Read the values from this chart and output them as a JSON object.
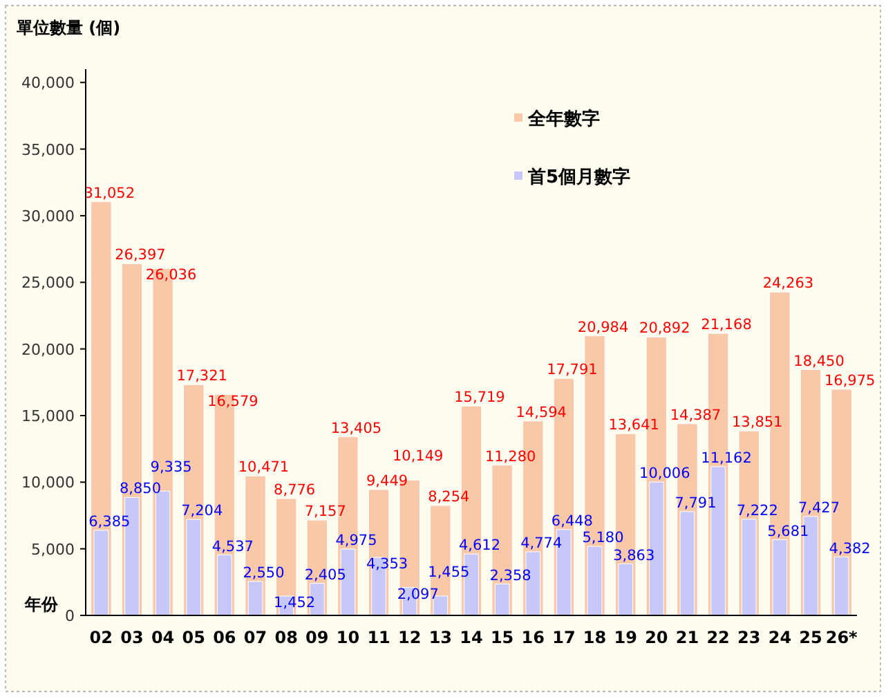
{
  "chart_data": {
    "type": "bar",
    "ylabel": "單位數量 (個)",
    "xlabel": "年份",
    "categories": [
      "02",
      "03",
      "04",
      "05",
      "06",
      "07",
      "08",
      "09",
      "10",
      "11",
      "12",
      "13",
      "14",
      "15",
      "16",
      "17",
      "18",
      "19",
      "20",
      "21",
      "22",
      "23",
      "24",
      "25",
      "26*"
    ],
    "series": [
      {
        "name": "全年數字",
        "color": "#f8c8a8",
        "values": [
          31052,
          26397,
          26036,
          17321,
          16579,
          10471,
          8776,
          7157,
          13405,
          9449,
          10149,
          8254,
          15719,
          11280,
          14594,
          17791,
          20984,
          13641,
          20892,
          14387,
          21168,
          13851,
          24263,
          18450,
          16975
        ],
        "value_labels": [
          "31,052",
          "26,397",
          "26,036",
          "17,321",
          "16,579",
          "10,471",
          "8,776",
          "7,157",
          "13,405",
          "9,449",
          "10,149",
          "8,254",
          "15,719",
          "11,280",
          "14,594",
          "17,791",
          "20,984",
          "13,641",
          "20,892",
          "14,387",
          "21,168",
          "13,851",
          "24,263",
          "18,450",
          "16,975"
        ]
      },
      {
        "name": "首5個月數字",
        "color": "#c8c8f8",
        "values": [
          6385,
          8850,
          9335,
          7204,
          4537,
          2550,
          1452,
          2405,
          4975,
          4353,
          2097,
          1455,
          4612,
          2358,
          4774,
          6448,
          5180,
          3863,
          10006,
          7791,
          11162,
          7222,
          5681,
          7427,
          4382
        ],
        "value_labels": [
          "6,385",
          "8,850",
          "9,335",
          "7,204",
          "4,537",
          "2,550",
          "1,452",
          "2,405",
          "4,975",
          "4,353",
          "2,097",
          "1,455",
          "4,612",
          "2,358",
          "4,774",
          "6,448",
          "5,180",
          "3,863",
          "10,006",
          "7,791",
          "11,162",
          "7,222",
          "5,681",
          "7,427",
          "4,382"
        ]
      }
    ],
    "ylim": [
      0,
      41000
    ],
    "yticks": [
      {
        "value": 0,
        "label": "0"
      },
      {
        "value": 5000,
        "label": "5,000"
      },
      {
        "value": 10000,
        "label": "10,000"
      },
      {
        "value": 15000,
        "label": "15,000"
      },
      {
        "value": 20000,
        "label": "20,000"
      },
      {
        "value": 25000,
        "label": "25,000"
      },
      {
        "value": 30000,
        "label": "30,000"
      },
      {
        "value": 35000,
        "label": "35,000"
      },
      {
        "value": 40000,
        "label": "40,000"
      }
    ],
    "legend": "top right",
    "grid": false
  }
}
